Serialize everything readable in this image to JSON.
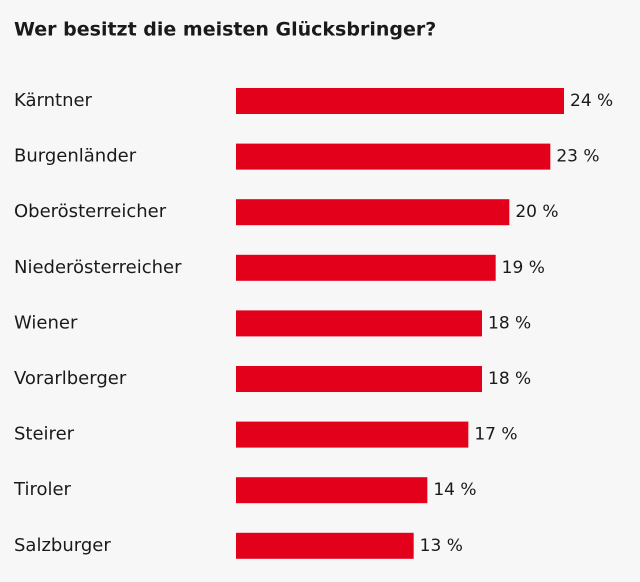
{
  "chart_data": {
    "type": "bar",
    "orientation": "horizontal",
    "title": "Wer besitzt die meisten Glücksbringer?",
    "categories": [
      "Kärntner",
      "Burgenländer",
      "Oberösterreicher",
      "Niederösterreicher",
      "Wiener",
      "Vorarlberger",
      "Steirer",
      "Tiroler",
      "Salzburger"
    ],
    "values": [
      24,
      23,
      20,
      19,
      18,
      18,
      17,
      14,
      13
    ],
    "value_labels": [
      "24 %",
      "23 %",
      "20 %",
      "19 %",
      "18 %",
      "18 %",
      "17 %",
      "14 %",
      "13 %"
    ],
    "color": "#e2001a"
  }
}
